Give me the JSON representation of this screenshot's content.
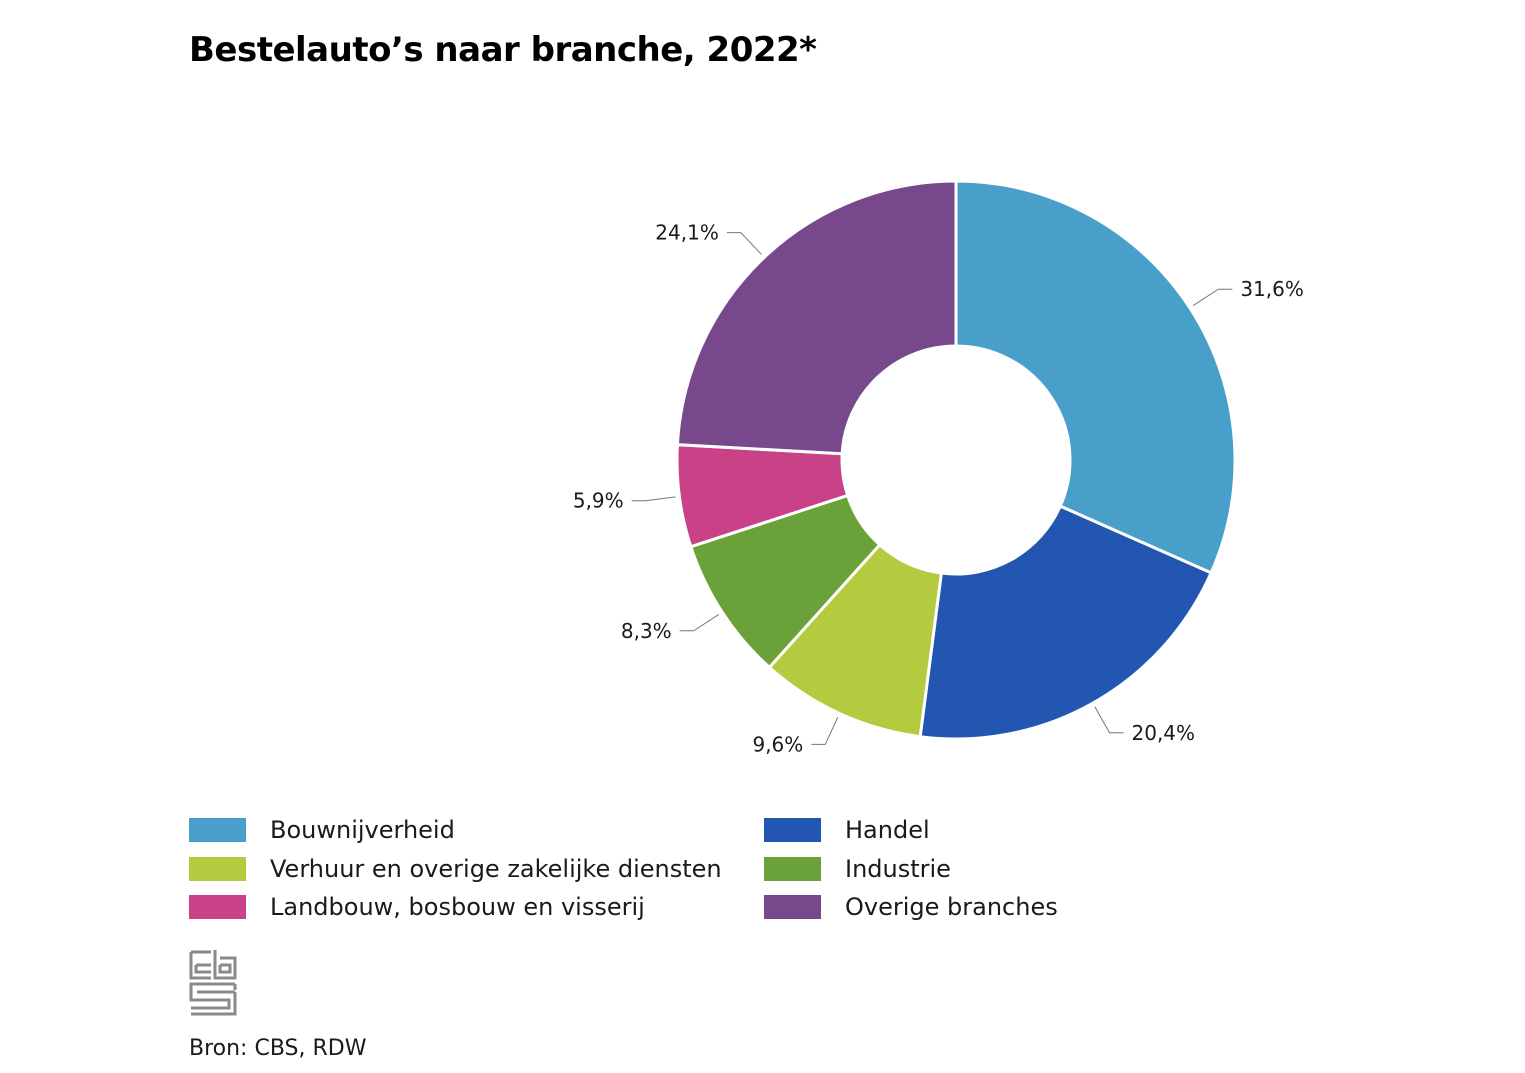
{
  "chart_data": {
    "type": "pie",
    "variant": "donut",
    "title": "Bestelauto’s naar branche, 2022*",
    "slices": [
      {
        "name": "Bouwnijverheid",
        "value": 31.6,
        "label": "31,6%",
        "color": "#489FCA"
      },
      {
        "name": "Handel",
        "value": 20.4,
        "label": "20,4%",
        "color": "#2356B0"
      },
      {
        "name": "Verhuur en overige zakelijke diensten",
        "value": 9.6,
        "label": "9,6%",
        "color": "#B4CA3F"
      },
      {
        "name": "Industrie",
        "value": 8.3,
        "label": "8,3%",
        "color": "#6AA239"
      },
      {
        "name": "Landbouw, bosbouw en visserij",
        "value": 5.9,
        "label": "5,9%",
        "color": "#C94288"
      },
      {
        "name": "Overige branches",
        "value": 24.1,
        "label": "24,1%",
        "color": "#77498C"
      }
    ],
    "legend_order": [
      "Bouwnijverheid",
      "Handel",
      "Verhuur en overige zakelijke diensten",
      "Industrie",
      "Landbouw, bosbouw en visserij",
      "Overige branches"
    ],
    "legend_placement": "bottom"
  },
  "footer": {
    "logo_icon": "cbs-logo-icon",
    "source": "Bron: CBS, RDW"
  }
}
